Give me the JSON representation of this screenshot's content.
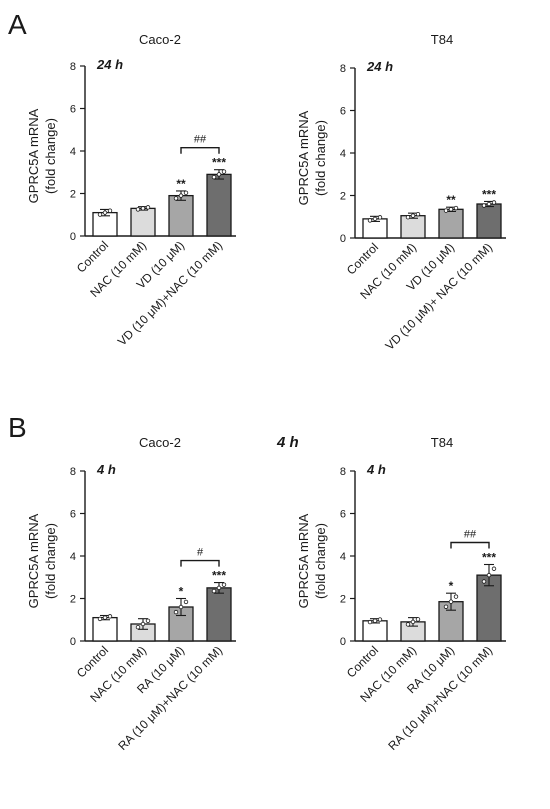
{
  "panels": [
    {
      "letter": "A",
      "bold_timepoint": ""
    },
    {
      "letter": "B",
      "bold_timepoint": "4 h"
    }
  ],
  "colors": {
    "bar_fills": [
      "#ffffff",
      "#dcdcdc",
      "#a6a6a6",
      "#6e6e6e"
    ],
    "stroke": "#1a1a1a"
  },
  "chart_data": [
    {
      "type": "bar",
      "panel": "A",
      "title": "Caco-2",
      "timepoint": "24 h",
      "ylabel": [
        "GPRC5A mRNA",
        "(fold change)"
      ],
      "ylim": [
        0,
        8
      ],
      "yticks": [
        0,
        2,
        4,
        6,
        8
      ],
      "categories": [
        "Control",
        "NAC (10 mM)",
        "VD  (10 μM)",
        "VD  (10 μM)+NAC (10 mM)"
      ],
      "values": [
        1.1,
        1.3,
        1.9,
        2.9
      ],
      "errors": [
        0.15,
        0.08,
        0.22,
        0.22
      ],
      "significance": [
        "",
        "",
        "**",
        "***"
      ],
      "bracket": {
        "from": 2,
        "to": 3,
        "label": "##"
      }
    },
    {
      "type": "bar",
      "panel": "A",
      "title": "T84",
      "timepoint": "24 h",
      "ylabel": [
        "GPRC5A mRNA",
        "(fold change)"
      ],
      "ylim": [
        0,
        8
      ],
      "yticks": [
        0,
        2,
        4,
        6,
        8
      ],
      "categories": [
        "Control",
        "NAC (10 mM)",
        "VD  (10 μM)",
        "VD  (10 μM)+ NAC (10 mM)"
      ],
      "values": [
        0.9,
        1.05,
        1.35,
        1.6
      ],
      "errors": [
        0.12,
        0.12,
        0.1,
        0.12
      ],
      "significance": [
        "",
        "",
        "**",
        "***"
      ],
      "bracket": null
    },
    {
      "type": "bar",
      "panel": "B",
      "title": "Caco-2",
      "timepoint": "4 h",
      "ylabel": [
        "GPRC5A mRNA",
        "(fold change)"
      ],
      "ylim": [
        0,
        8
      ],
      "yticks": [
        0,
        2,
        4,
        6,
        8
      ],
      "categories": [
        "Control",
        "NAC (10 mM)",
        "RA (10 μM)",
        "RA (10 μM)+NAC (10 mM)"
      ],
      "values": [
        1.1,
        0.8,
        1.6,
        2.5
      ],
      "errors": [
        0.1,
        0.25,
        0.4,
        0.25
      ],
      "significance": [
        "",
        "",
        "*",
        "***"
      ],
      "bracket": {
        "from": 2,
        "to": 3,
        "label": "#"
      }
    },
    {
      "type": "bar",
      "panel": "B",
      "title": "T84",
      "timepoint": "4 h",
      "ylabel": [
        "GPRC5A mRNA",
        "(fold change)"
      ],
      "ylim": [
        0,
        8
      ],
      "yticks": [
        0,
        2,
        4,
        6,
        8
      ],
      "categories": [
        "Control",
        "NAC (10 mM)",
        "RA (10 μM)",
        "RA (10 μM)+NAC (10 mM)"
      ],
      "values": [
        0.95,
        0.9,
        1.85,
        3.1
      ],
      "errors": [
        0.1,
        0.2,
        0.4,
        0.5
      ],
      "significance": [
        "",
        "",
        "*",
        "***"
      ],
      "bracket": {
        "from": 2,
        "to": 3,
        "label": "##"
      }
    }
  ]
}
